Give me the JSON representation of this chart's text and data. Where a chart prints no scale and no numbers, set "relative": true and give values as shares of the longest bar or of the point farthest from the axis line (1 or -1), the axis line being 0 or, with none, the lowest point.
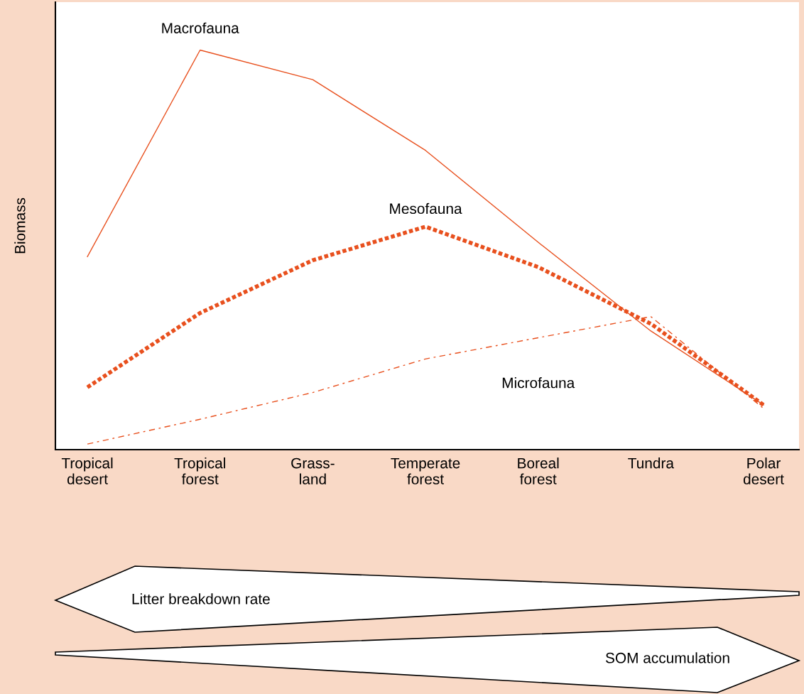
{
  "chart_data": {
    "type": "line",
    "relative": true,
    "ylabel": "Biomass",
    "categories": [
      "Tropical\ndesert",
      "Tropical\nforest",
      "Grass-\nland",
      "Temperate\nforest",
      "Boreal\nforest",
      "Tundra",
      "Polar\ndesert"
    ],
    "series": [
      {
        "name": "Macrofauna",
        "color": "#e8501e",
        "line_style": "solid",
        "values": [
          0.483,
          1.0,
          0.926,
          0.749,
          0.519,
          0.297,
          0.112
        ]
      },
      {
        "name": "Mesofauna",
        "color": "#e8501e",
        "line_style": "dotted",
        "values": [
          0.156,
          0.342,
          0.474,
          0.558,
          0.457,
          0.315,
          0.112
        ]
      },
      {
        "name": "Microfauna",
        "color": "#e8501e",
        "line_style": "dashed",
        "values": [
          0.014,
          0.076,
          0.143,
          0.227,
          0.28,
          0.333,
          0.103
        ]
      }
    ],
    "annotations": [
      "Litter breakdown rate",
      "SOM accumulation"
    ],
    "grid": false,
    "legend": false,
    "marker": "none"
  }
}
